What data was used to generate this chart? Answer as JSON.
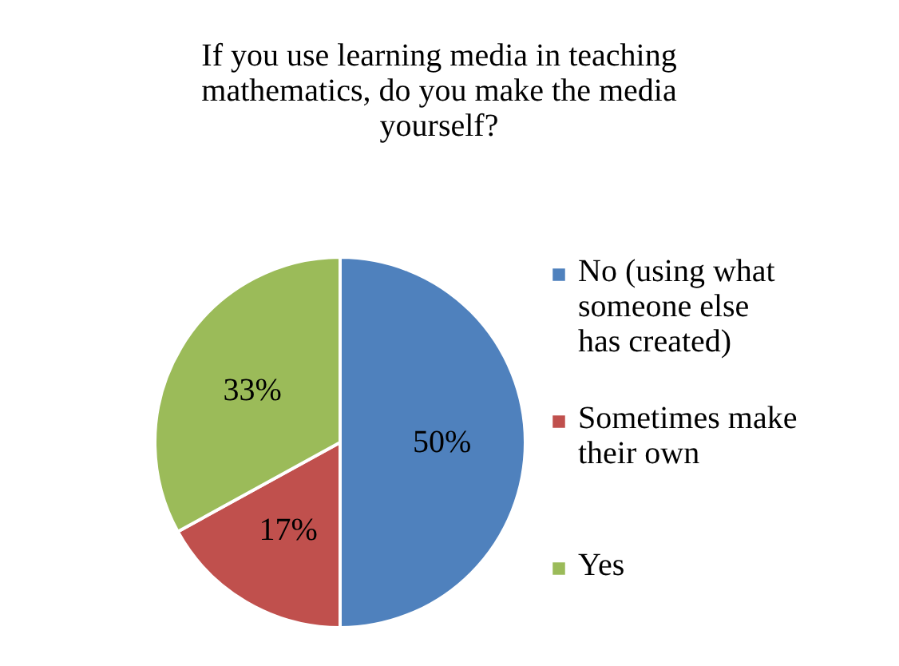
{
  "chart_data": {
    "type": "pie",
    "title": "If you use learning media in teaching mathematics, do you make the media yourself?",
    "categories": [
      "No (using what someone else has created)",
      "Sometimes make their own",
      "Yes"
    ],
    "values": [
      50,
      17,
      33
    ],
    "colors": [
      "#4f81bd",
      "#c0504d",
      "#9bbb59"
    ],
    "value_labels": [
      "50%",
      "17%",
      "33%"
    ],
    "legend": "right"
  }
}
